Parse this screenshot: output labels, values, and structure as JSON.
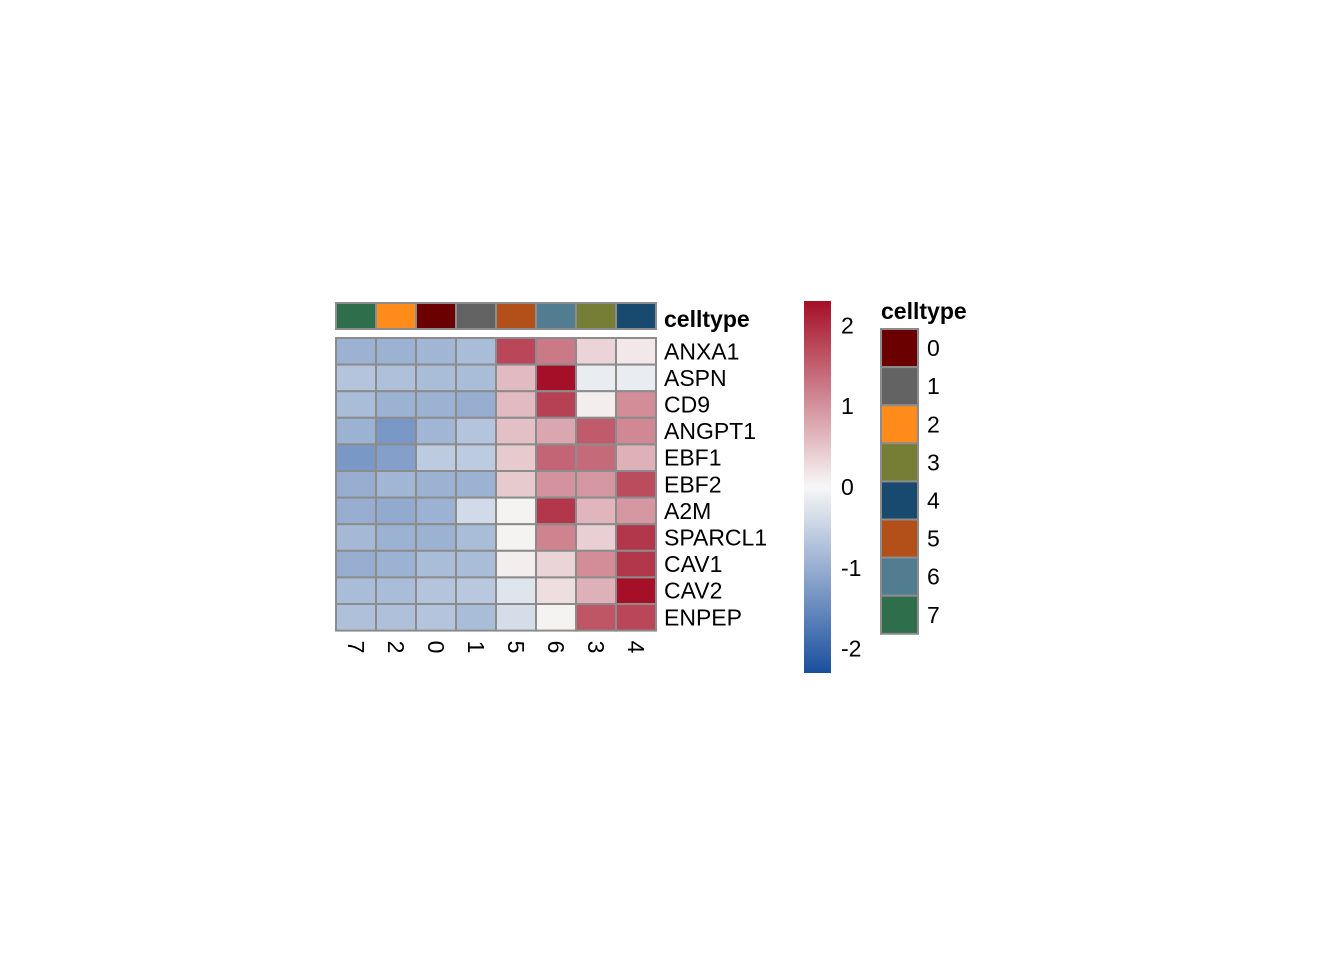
{
  "chart_data": {
    "type": "heatmap",
    "columns": [
      "7",
      "2",
      "0",
      "1",
      "5",
      "6",
      "3",
      "4"
    ],
    "rows": [
      "ANXA1",
      "ASPN",
      "CD9",
      "ANGPT1",
      "EBF1",
      "EBF2",
      "A2M",
      "SPARCL1",
      "CAV1",
      "CAV2",
      "ENPEP"
    ],
    "values": [
      [
        -0.95,
        -0.95,
        -0.9,
        -0.8,
        1.75,
        1.25,
        0.35,
        0.15
      ],
      [
        -0.7,
        -0.75,
        -0.8,
        -0.8,
        0.6,
        2.3,
        -0.15,
        -0.15
      ],
      [
        -0.8,
        -0.95,
        -0.95,
        -1.0,
        0.6,
        1.8,
        0.1,
        1.05
      ],
      [
        -0.95,
        -1.3,
        -0.9,
        -0.7,
        0.55,
        0.8,
        1.55,
        1.1
      ],
      [
        -1.3,
        -1.2,
        -0.6,
        -0.6,
        0.45,
        1.45,
        1.4,
        0.7
      ],
      [
        -1.0,
        -0.9,
        -0.95,
        -0.95,
        0.45,
        1.0,
        0.95,
        1.7
      ],
      [
        -1.0,
        -1.05,
        -0.95,
        -0.4,
        0.05,
        1.9,
        0.65,
        0.95
      ],
      [
        -0.85,
        -0.95,
        -0.95,
        -0.8,
        0.05,
        1.15,
        0.4,
        1.9
      ],
      [
        -1.0,
        -0.95,
        -0.8,
        -0.8,
        0.1,
        0.35,
        1.05,
        1.9
      ],
      [
        -0.8,
        -0.8,
        -0.7,
        -0.65,
        -0.25,
        0.25,
        0.7,
        2.3
      ],
      [
        -0.75,
        -0.75,
        -0.7,
        -0.8,
        -0.35,
        0.05,
        1.6,
        1.75
      ]
    ],
    "color_scale": {
      "min": -2.3,
      "max": 2.3,
      "low_color": "#1a4f9e",
      "mid_color": "#f7f7f7",
      "high_color": "#a50f27",
      "ticks": [
        "2",
        "1",
        "0",
        "-1",
        "-2"
      ],
      "tick_values": [
        2,
        1,
        0,
        -1,
        -2
      ]
    },
    "annotation": {
      "title": "celltype",
      "column_assignment": [
        "7",
        "2",
        "0",
        "1",
        "5",
        "6",
        "3",
        "4"
      ],
      "legend_title": "celltype",
      "levels": [
        "0",
        "1",
        "2",
        "3",
        "4",
        "5",
        "6",
        "7"
      ],
      "colors": {
        "0": "#6b0000",
        "1": "#636363",
        "2": "#ff8c1a",
        "3": "#767d34",
        "4": "#174a6e",
        "5": "#b3501a",
        "6": "#527d91",
        "7": "#2e6e4a"
      }
    },
    "cell_border_color": "#8c8c8c",
    "grid": true
  }
}
